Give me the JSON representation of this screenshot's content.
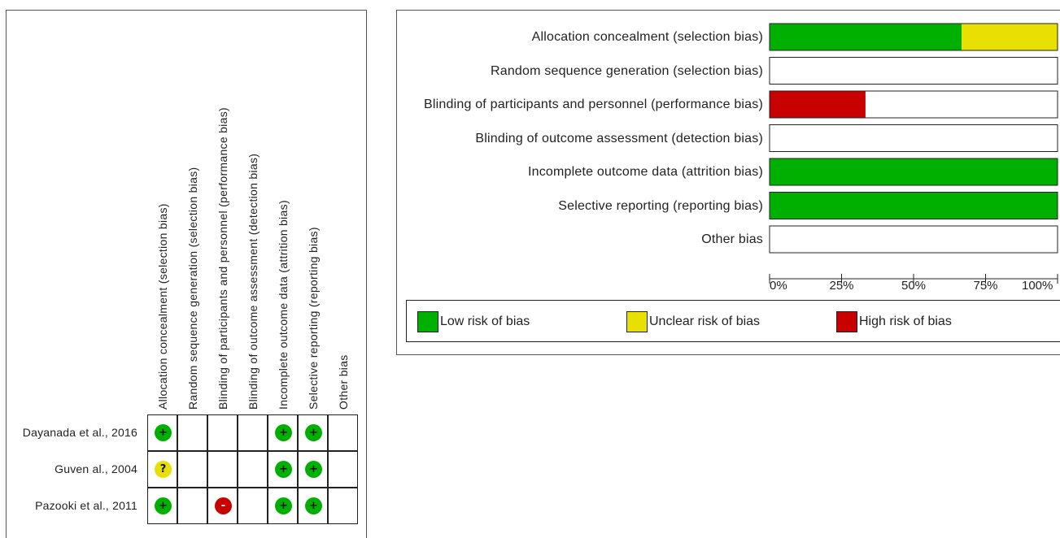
{
  "colors": {
    "low": "#00b000",
    "unclear": "#e8e000",
    "high": "#c80000",
    "none": "#ffffff"
  },
  "summary": {
    "domains": [
      "Allocation concealment (selection bias)",
      "Random sequence generation (selection bias)",
      "Blinding of participants and personnel (performance bias)",
      "Blinding of outcome assessment (detection bias)",
      "Incomplete outcome data (attrition bias)",
      "Selective reporting (reporting bias)",
      "Other bias"
    ],
    "studies": [
      {
        "name": "Dayanada et al., 2016",
        "judgements": [
          "low",
          "",
          "",
          "",
          "low",
          "low",
          ""
        ]
      },
      {
        "name": "Guven al., 2004",
        "judgements": [
          "unclear",
          "",
          "",
          "",
          "low",
          "low",
          ""
        ]
      },
      {
        "name": "Pazooki et al., 2011",
        "judgements": [
          "low",
          "",
          "high",
          "",
          "low",
          "low",
          ""
        ]
      }
    ],
    "symbols": {
      "low": "+",
      "unclear": "?",
      "high": "-"
    }
  },
  "chart_data": {
    "type": "bar",
    "orientation": "horizontal",
    "stacked": true,
    "categories": [
      "Allocation concealment (selection bias)",
      "Random sequence generation (selection bias)",
      "Blinding of participants and personnel (performance bias)",
      "Blinding of outcome assessment (detection bias)",
      "Incomplete outcome data (attrition bias)",
      "Selective reporting (reporting bias)",
      "Other bias"
    ],
    "series": [
      {
        "name": "Low risk of bias",
        "key": "low",
        "values": [
          66.7,
          0,
          0,
          0,
          100,
          100,
          0
        ]
      },
      {
        "name": "Unclear risk of bias",
        "key": "unclear",
        "values": [
          33.3,
          0,
          0,
          0,
          0,
          0,
          0
        ]
      },
      {
        "name": "High risk of bias",
        "key": "high",
        "values": [
          0,
          0,
          33.3,
          0,
          0,
          0,
          0
        ]
      }
    ],
    "xlim": [
      0,
      100
    ],
    "xticks": [
      "0%",
      "25%",
      "50%",
      "75%",
      "100%"
    ],
    "legend": "bottom"
  }
}
